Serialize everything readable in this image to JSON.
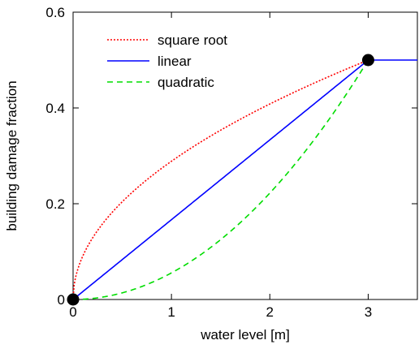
{
  "chart_data": {
    "type": "line",
    "title": "",
    "xlabel": "water level  [m]",
    "ylabel": "building damage fraction",
    "xlim": [
      0,
      3.5
    ],
    "ylim": [
      0,
      0.6
    ],
    "xticks": [
      0,
      1,
      2,
      3
    ],
    "xtick_labels": [
      "0",
      "1",
      "2",
      "3"
    ],
    "yticks": [
      0,
      0.2,
      0.4,
      0.6
    ],
    "ytick_labels": [
      "0",
      "0.2",
      "0.4",
      "0.6"
    ],
    "grid": false,
    "legend_position": "top-left",
    "series": [
      {
        "name": "square root",
        "color": "#ff0000",
        "style": "dotted",
        "function": "0.5*sqrt(x/3) for x<=3, 0.5 for x>3",
        "x": [
          0,
          0.05,
          0.1,
          0.25,
          0.5,
          0.75,
          1,
          1.5,
          2,
          2.5,
          3
        ],
        "y": [
          0,
          0.065,
          0.091,
          0.144,
          0.204,
          0.25,
          0.289,
          0.354,
          0.408,
          0.456,
          0.5
        ]
      },
      {
        "name": "linear",
        "color": "#0000ff",
        "style": "solid",
        "function": "0.5*x/3 for x<=3, 0.5 for x>3",
        "x": [
          0,
          3,
          3.5
        ],
        "y": [
          0,
          0.5,
          0.5
        ]
      },
      {
        "name": "quadratic",
        "color": "#00dd00",
        "style": "dashed",
        "function": "0.5*(x/3)^2 for x<=3, 0.5 for x>3",
        "x": [
          0,
          0.5,
          1,
          1.5,
          2,
          2.5,
          3
        ],
        "y": [
          0,
          0.014,
          0.056,
          0.125,
          0.222,
          0.347,
          0.5
        ]
      }
    ],
    "markers": [
      {
        "x": 0,
        "y": 0,
        "color": "#000000"
      },
      {
        "x": 3,
        "y": 0.5,
        "color": "#000000"
      }
    ]
  }
}
